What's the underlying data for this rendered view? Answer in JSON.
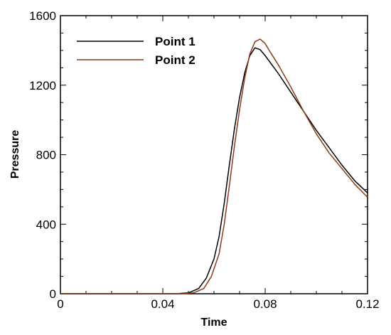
{
  "chart_data": {
    "type": "line",
    "xlabel": "Time",
    "ylabel": "Pressure",
    "xlim": [
      0,
      0.12
    ],
    "ylim": [
      0,
      1600
    ],
    "xticks": [
      0,
      0.04,
      0.08,
      0.12
    ],
    "xtick_labels": [
      "0",
      "0.04",
      "0.08",
      "0.12"
    ],
    "yticks": [
      0,
      400,
      800,
      1200,
      1600
    ],
    "ytick_labels": [
      "0",
      "400",
      "800",
      "1200",
      "1600"
    ],
    "grid": false,
    "legend_position": "top-left",
    "series": [
      {
        "name": "Point 1",
        "color": "#000000",
        "x": [
          0.045,
          0.05,
          0.054,
          0.057,
          0.06,
          0.062,
          0.064,
          0.066,
          0.068,
          0.07,
          0.072,
          0.074,
          0.076,
          0.078,
          0.08,
          0.085,
          0.09,
          0.095,
          0.1,
          0.105,
          0.11,
          0.115,
          0.12
        ],
        "y": [
          0,
          5,
          30,
          90,
          200,
          330,
          520,
          740,
          950,
          1130,
          1270,
          1370,
          1415,
          1405,
          1370,
          1270,
          1160,
          1050,
          940,
          840,
          740,
          650,
          580
        ]
      },
      {
        "name": "Point 2",
        "color": "#8B3A1A",
        "x": [
          0.048,
          0.052,
          0.056,
          0.059,
          0.062,
          0.064,
          0.066,
          0.068,
          0.07,
          0.072,
          0.074,
          0.076,
          0.078,
          0.08,
          0.082,
          0.085,
          0.09,
          0.095,
          0.1,
          0.105,
          0.11,
          0.115,
          0.12
        ],
        "y": [
          0,
          5,
          30,
          100,
          230,
          400,
          620,
          850,
          1060,
          1240,
          1380,
          1450,
          1465,
          1440,
          1390,
          1320,
          1190,
          1050,
          920,
          810,
          720,
          630,
          555
        ]
      }
    ]
  }
}
